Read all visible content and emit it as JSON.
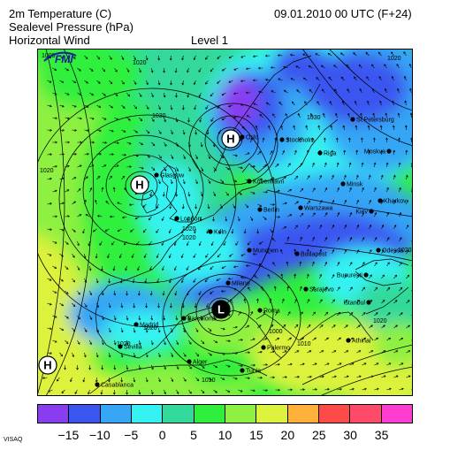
{
  "header": {
    "line1": "2m Temperature (C)",
    "line2": "Sealevel Pressure (hPa)",
    "line3": "Horizontal Wind",
    "level": "Level  1",
    "datetime": "09.01.2010 00 UTC (F+24)"
  },
  "logo": "FMI",
  "brand": "VISAQ",
  "colors": {
    "scale": [
      "#8a3cf0",
      "#3a56f0",
      "#36a6f5",
      "#34f2f2",
      "#32d99a",
      "#2ef03c",
      "#8ef041",
      "#dcf23c",
      "#ffb13a",
      "#ff4a4a",
      "#ff4a6a",
      "#ff3cd0"
    ],
    "ticks": [
      "−15",
      "−10",
      "−5",
      "0",
      "5",
      "10",
      "15",
      "20",
      "25",
      "30",
      "35"
    ]
  },
  "cities": [
    {
      "name": "Oslo"
    },
    {
      "name": "Stockholm"
    },
    {
      "name": "St.Petersburg"
    },
    {
      "name": "Moskva"
    },
    {
      "name": "Riga"
    },
    {
      "name": "Minsk"
    },
    {
      "name": "Kharkov"
    },
    {
      "name": "Kiev"
    },
    {
      "name": "Warszawa"
    },
    {
      "name": "Berlin"
    },
    {
      "name": "Kobenhavn"
    },
    {
      "name": "Glasgow"
    },
    {
      "name": "London"
    },
    {
      "name": "Koln"
    },
    {
      "name": "Munchen"
    },
    {
      "name": "Budapest"
    },
    {
      "name": "Milano"
    },
    {
      "name": "Sarajevo"
    },
    {
      "name": "Bucuresti"
    },
    {
      "name": "Odessa"
    },
    {
      "name": "Istanbul"
    },
    {
      "name": "Athinai"
    },
    {
      "name": "Roma"
    },
    {
      "name": "Barcelona"
    },
    {
      "name": "Madrid"
    },
    {
      "name": "Sevilla"
    },
    {
      "name": "Alger"
    },
    {
      "name": "Tunis"
    },
    {
      "name": "Casablanca"
    },
    {
      "name": "Palermo"
    }
  ],
  "pressure_labels": [
    "1000",
    "1020",
    "1030",
    "1030",
    "1020",
    "1020",
    "1020",
    "1020",
    "1020",
    "1000",
    "1010",
    "1010",
    "1020",
    "1020",
    "1020"
  ],
  "systems": [
    "H",
    "H",
    "L",
    "H"
  ]
}
